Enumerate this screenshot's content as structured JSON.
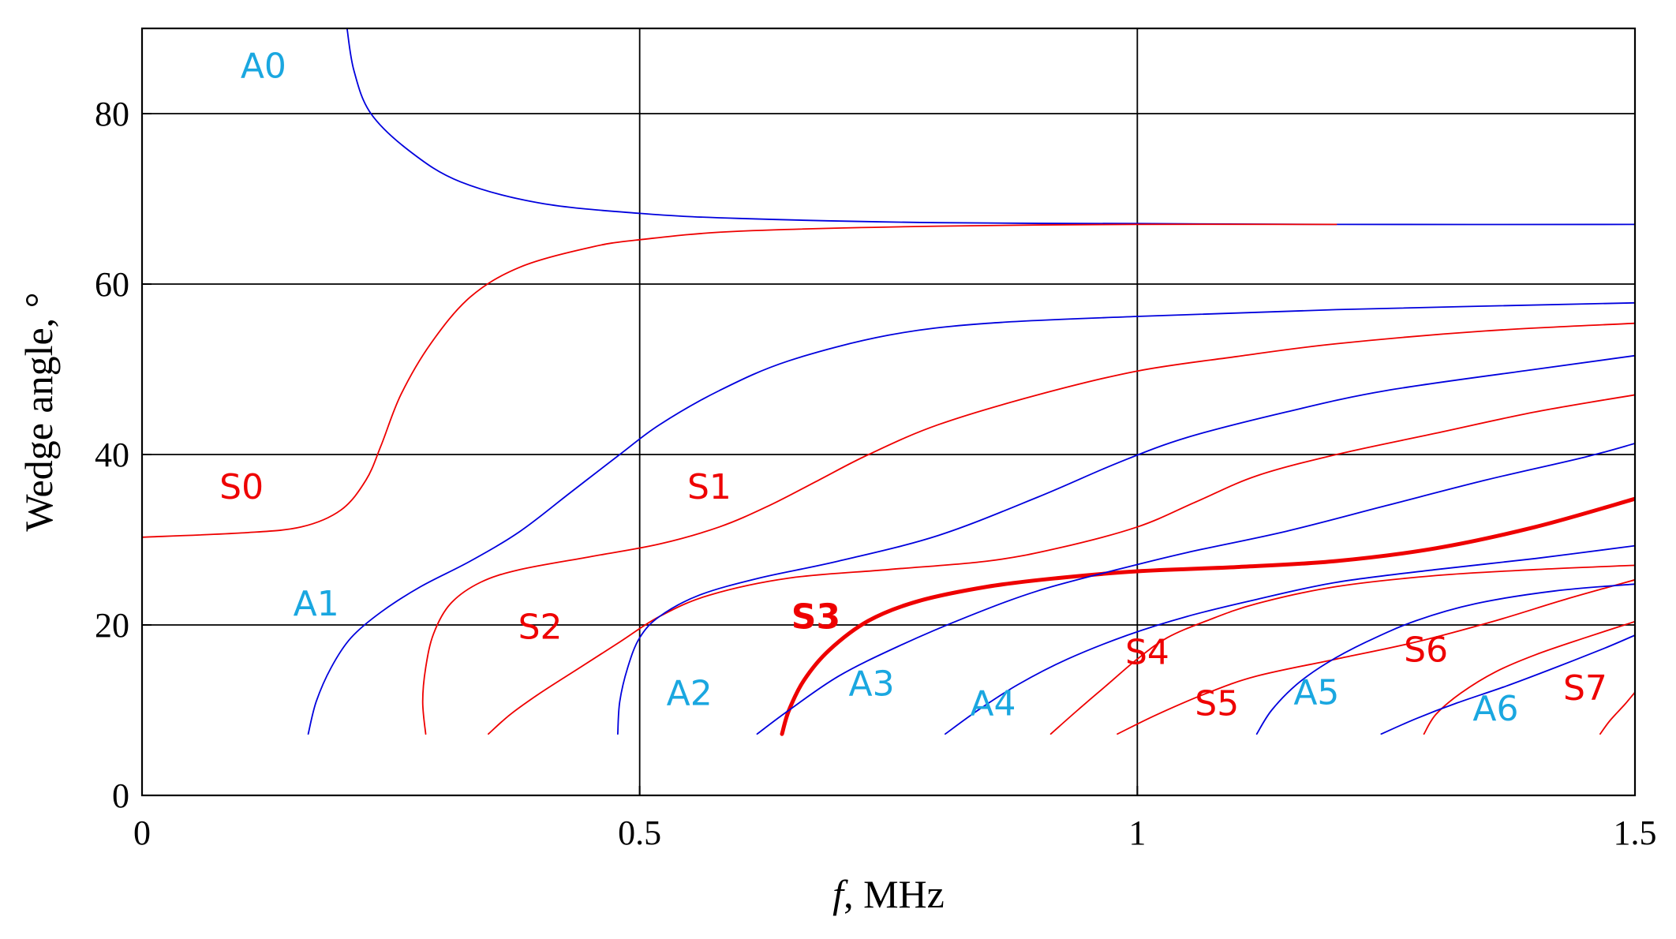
{
  "chart_data": {
    "type": "line",
    "title": "",
    "xlabel_italic": "f",
    "xlabel_rest": ", MHz",
    "ylabel": "Wedge angle, °",
    "xlim": [
      0,
      1.5
    ],
    "ylim": [
      0,
      90
    ],
    "x_ticks": [
      {
        "value": 0,
        "label": "0"
      },
      {
        "value": 0.5,
        "label": "0.5"
      },
      {
        "value": 1,
        "label": "1"
      },
      {
        "value": 1.5,
        "label": "1.5"
      }
    ],
    "y_ticks": [
      {
        "value": 0,
        "label": "0"
      },
      {
        "value": 20,
        "label": "20"
      },
      {
        "value": 40,
        "label": "40"
      },
      {
        "value": 60,
        "label": "60"
      },
      {
        "value": 80,
        "label": "80"
      }
    ],
    "grid": true,
    "colors": {
      "antisymmetric": "#0000dd",
      "symmetric": "#ee0000",
      "label_antisymmetric": "#1aa7e0",
      "label_symmetric": "#ee0000",
      "grid": "#000000"
    },
    "series": [
      {
        "name": "A0",
        "family": "A",
        "label": {
          "x": 0.122,
          "y": 84.2
        },
        "points": [
          [
            0.206,
            90
          ],
          [
            0.213,
            85
          ],
          [
            0.23,
            80
          ],
          [
            0.27,
            75.5
          ],
          [
            0.32,
            72
          ],
          [
            0.4,
            69.5
          ],
          [
            0.5,
            68.3
          ],
          [
            0.6,
            67.7
          ],
          [
            0.8,
            67.2
          ],
          [
            1.0,
            67.1
          ],
          [
            1.2,
            67.0
          ],
          [
            1.5,
            67.0
          ]
        ]
      },
      {
        "name": "S0",
        "family": "S",
        "label": {
          "x": 0.1,
          "y": 34.8
        },
        "points": [
          [
            0,
            30.3
          ],
          [
            0.1,
            30.8
          ],
          [
            0.16,
            31.5
          ],
          [
            0.2,
            33.5
          ],
          [
            0.225,
            37
          ],
          [
            0.24,
            41
          ],
          [
            0.26,
            47
          ],
          [
            0.29,
            53
          ],
          [
            0.33,
            58.5
          ],
          [
            0.38,
            62
          ],
          [
            0.45,
            64.3
          ],
          [
            0.5,
            65.2
          ],
          [
            0.6,
            66.2
          ],
          [
            0.8,
            66.8
          ],
          [
            1.0,
            67.0
          ],
          [
            1.2,
            67.0
          ]
        ]
      },
      {
        "name": "A1",
        "family": "A",
        "label": {
          "x": 0.175,
          "y": 21.1
        },
        "points": [
          [
            0.167,
            7.2
          ],
          [
            0.175,
            11
          ],
          [
            0.19,
            15
          ],
          [
            0.21,
            18.5
          ],
          [
            0.24,
            21.5
          ],
          [
            0.28,
            24.5
          ],
          [
            0.33,
            27.5
          ],
          [
            0.38,
            31
          ],
          [
            0.43,
            35.5
          ],
          [
            0.48,
            40
          ],
          [
            0.52,
            43.5
          ],
          [
            0.58,
            47.5
          ],
          [
            0.65,
            51
          ],
          [
            0.75,
            54
          ],
          [
            0.85,
            55.4
          ],
          [
            1.0,
            56.2
          ],
          [
            1.2,
            57
          ],
          [
            1.5,
            57.8
          ]
        ]
      },
      {
        "name": "S1",
        "family": "S",
        "label": {
          "x": 0.57,
          "y": 34.8
        },
        "points": [
          [
            0.285,
            7.2
          ],
          [
            0.282,
            11
          ],
          [
            0.285,
            15
          ],
          [
            0.293,
            19
          ],
          [
            0.31,
            22.5
          ],
          [
            0.34,
            25
          ],
          [
            0.38,
            26.5
          ],
          [
            0.45,
            28
          ],
          [
            0.52,
            29.5
          ],
          [
            0.58,
            31.5
          ],
          [
            0.63,
            34
          ],
          [
            0.68,
            37
          ],
          [
            0.73,
            40
          ],
          [
            0.8,
            43.5
          ],
          [
            0.9,
            47
          ],
          [
            1.0,
            49.8
          ],
          [
            1.1,
            51.5
          ],
          [
            1.2,
            53
          ],
          [
            1.35,
            54.5
          ],
          [
            1.5,
            55.4
          ]
        ]
      },
      {
        "name": "S2",
        "family": "S",
        "label": {
          "x": 0.4,
          "y": 18.4
        },
        "points": [
          [
            0.348,
            7.2
          ],
          [
            0.37,
            9.5
          ],
          [
            0.4,
            12
          ],
          [
            0.44,
            15
          ],
          [
            0.48,
            18
          ],
          [
            0.52,
            21
          ],
          [
            0.57,
            23.5
          ],
          [
            0.65,
            25.5
          ],
          [
            0.75,
            26.5
          ],
          [
            0.85,
            27.5
          ],
          [
            0.92,
            29
          ],
          [
            1.0,
            31.5
          ],
          [
            1.06,
            34.5
          ],
          [
            1.12,
            37.5
          ],
          [
            1.2,
            40
          ],
          [
            1.3,
            42.5
          ],
          [
            1.4,
            45
          ],
          [
            1.5,
            47
          ]
        ]
      },
      {
        "name": "A2",
        "family": "A",
        "label": {
          "x": 0.55,
          "y": 10.6
        },
        "points": [
          [
            0.478,
            7.2
          ],
          [
            0.48,
            11
          ],
          [
            0.488,
            15
          ],
          [
            0.5,
            18.5
          ],
          [
            0.52,
            21
          ],
          [
            0.56,
            23.5
          ],
          [
            0.62,
            25.5
          ],
          [
            0.7,
            27.5
          ],
          [
            0.8,
            30.5
          ],
          [
            0.9,
            35
          ],
          [
            0.98,
            39
          ],
          [
            1.05,
            42
          ],
          [
            1.15,
            45
          ],
          [
            1.25,
            47.5
          ],
          [
            1.4,
            50
          ],
          [
            1.5,
            51.6
          ]
        ]
      },
      {
        "name": "S3",
        "family": "S",
        "bold": true,
        "label": {
          "x": 0.677,
          "y": 19.6
        },
        "points": [
          [
            0.643,
            7.2
          ],
          [
            0.65,
            10
          ],
          [
            0.665,
            13.5
          ],
          [
            0.69,
            17
          ],
          [
            0.73,
            20.5
          ],
          [
            0.78,
            22.8
          ],
          [
            0.85,
            24.5
          ],
          [
            0.92,
            25.5
          ],
          [
            1.0,
            26.3
          ],
          [
            1.1,
            26.8
          ],
          [
            1.2,
            27.5
          ],
          [
            1.3,
            29
          ],
          [
            1.4,
            31.5
          ],
          [
            1.5,
            34.8
          ]
        ]
      },
      {
        "name": "A3",
        "family": "A",
        "label": {
          "x": 0.733,
          "y": 11.7
        },
        "points": [
          [
            0.618,
            7.2
          ],
          [
            0.65,
            10
          ],
          [
            0.7,
            14
          ],
          [
            0.76,
            17.5
          ],
          [
            0.83,
            21
          ],
          [
            0.9,
            24
          ],
          [
            0.98,
            26.5
          ],
          [
            1.05,
            28.5
          ],
          [
            1.15,
            31
          ],
          [
            1.25,
            34
          ],
          [
            1.35,
            37
          ],
          [
            1.45,
            39.7
          ],
          [
            1.5,
            41.3
          ]
        ]
      },
      {
        "name": "A4",
        "family": "A",
        "label": {
          "x": 0.855,
          "y": 9.4
        },
        "points": [
          [
            0.807,
            7.2
          ],
          [
            0.84,
            10
          ],
          [
            0.88,
            13
          ],
          [
            0.93,
            16
          ],
          [
            0.99,
            18.8
          ],
          [
            1.05,
            21
          ],
          [
            1.12,
            23
          ],
          [
            1.2,
            25
          ],
          [
            1.3,
            26.5
          ],
          [
            1.4,
            27.8
          ],
          [
            1.5,
            29.3
          ]
        ]
      },
      {
        "name": "S4",
        "family": "S",
        "label": {
          "x": 1.01,
          "y": 15.4
        },
        "points": [
          [
            0.913,
            7.2
          ],
          [
            0.94,
            10
          ],
          [
            0.97,
            13
          ],
          [
            1.0,
            16
          ],
          [
            1.03,
            18.5
          ],
          [
            1.07,
            20.5
          ],
          [
            1.12,
            22.5
          ],
          [
            1.2,
            24.5
          ],
          [
            1.3,
            25.8
          ],
          [
            1.4,
            26.5
          ],
          [
            1.5,
            27
          ]
        ]
      },
      {
        "name": "S5",
        "family": "S",
        "label": {
          "x": 1.08,
          "y": 9.4
        },
        "points": [
          [
            0.98,
            7.2
          ],
          [
            1.02,
            9.5
          ],
          [
            1.07,
            12
          ],
          [
            1.12,
            14
          ],
          [
            1.2,
            16
          ],
          [
            1.28,
            18
          ],
          [
            1.36,
            20.5
          ],
          [
            1.43,
            23
          ],
          [
            1.5,
            25.3
          ]
        ]
      },
      {
        "name": "A5",
        "family": "A",
        "label": {
          "x": 1.18,
          "y": 10.7
        },
        "points": [
          [
            1.12,
            7.2
          ],
          [
            1.135,
            10
          ],
          [
            1.16,
            13
          ],
          [
            1.19,
            15.5
          ],
          [
            1.23,
            18
          ],
          [
            1.28,
            20.5
          ],
          [
            1.34,
            22.5
          ],
          [
            1.42,
            24
          ],
          [
            1.5,
            24.8
          ]
        ]
      },
      {
        "name": "S6",
        "family": "S",
        "label": {
          "x": 1.29,
          "y": 15.7
        },
        "points": [
          [
            1.288,
            7.2
          ],
          [
            1.3,
            9.5
          ],
          [
            1.325,
            12
          ],
          [
            1.36,
            14.5
          ],
          [
            1.4,
            16.5
          ],
          [
            1.45,
            18.5
          ],
          [
            1.5,
            20.4
          ]
        ]
      },
      {
        "name": "A6",
        "family": "A",
        "label": {
          "x": 1.36,
          "y": 8.8
        },
        "points": [
          [
            1.245,
            7.2
          ],
          [
            1.28,
            9
          ],
          [
            1.32,
            10.8
          ],
          [
            1.37,
            12.8
          ],
          [
            1.42,
            15
          ],
          [
            1.47,
            17.3
          ],
          [
            1.5,
            18.8
          ]
        ]
      },
      {
        "name": "S7",
        "family": "S",
        "label": {
          "x": 1.45,
          "y": 11.2
        },
        "points": [
          [
            1.465,
            7.2
          ],
          [
            1.475,
            8.8
          ],
          [
            1.49,
            10.7
          ],
          [
            1.5,
            12.1
          ]
        ]
      }
    ]
  }
}
